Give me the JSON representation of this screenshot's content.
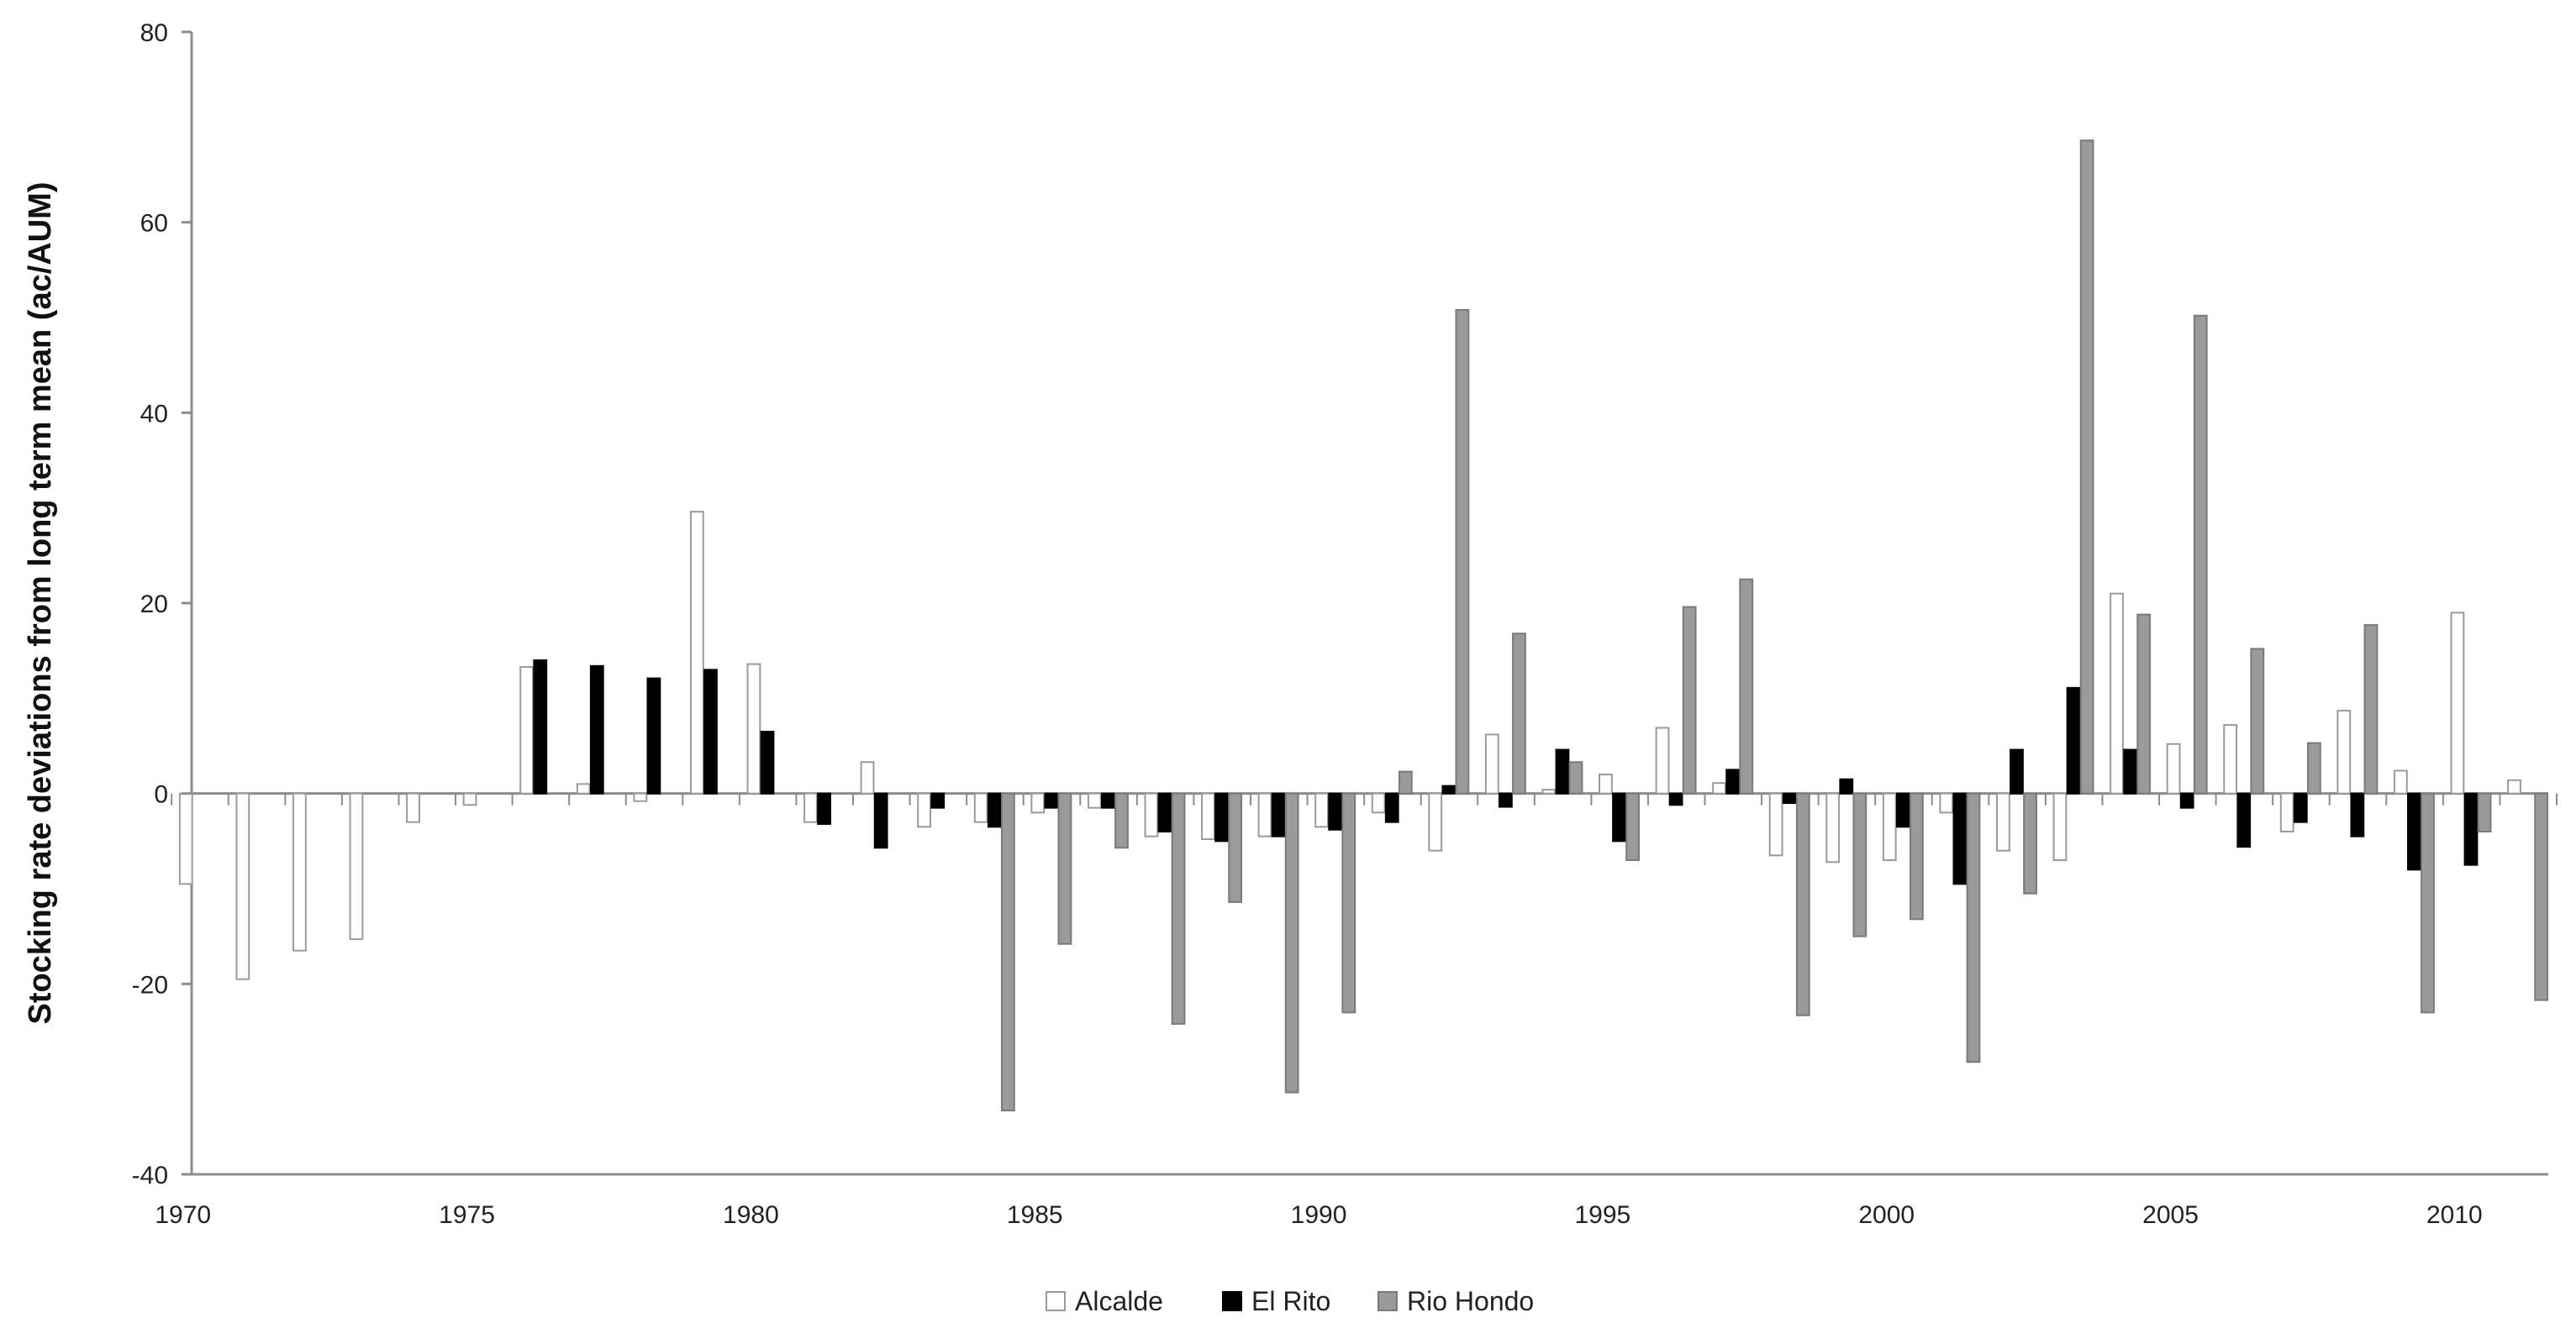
{
  "chart_data": {
    "type": "bar",
    "title": "",
    "xlabel": "",
    "ylabel": "Stocking rate deviations from long term mean (ac/AUM)",
    "ylim": [
      -40,
      80
    ],
    "yticks": [
      80,
      60,
      40,
      20,
      0,
      -20,
      -40
    ],
    "xticks": [
      1970,
      1975,
      1980,
      1985,
      1990,
      1995,
      2000,
      2005,
      2010
    ],
    "xlim": [
      1970,
      2011
    ],
    "grid": false,
    "legend_position": "bottom",
    "categories": [
      1970,
      1971,
      1972,
      1973,
      1974,
      1975,
      1976,
      1977,
      1978,
      1979,
      1980,
      1981,
      1982,
      1983,
      1984,
      1985,
      1986,
      1987,
      1988,
      1989,
      1990,
      1991,
      1992,
      1993,
      1994,
      1995,
      1996,
      1997,
      1998,
      1999,
      2000,
      2001,
      2002,
      2003,
      2004,
      2005,
      2006,
      2007,
      2008,
      2009,
      2010,
      2011
    ],
    "series": [
      {
        "name": "Alcalde",
        "color": "#ffffff",
        "stroke": "#9a9a9a",
        "values": [
          -9.5,
          -19.5,
          -16.5,
          -15.3,
          -3,
          -1.2,
          13.3,
          1,
          -0.8,
          29.6,
          13.6,
          -3,
          3.3,
          -3.5,
          -3,
          -2,
          -1.5,
          -4.5,
          -4.8,
          -4.5,
          -3.5,
          -2,
          -6,
          6.2,
          0.4,
          2,
          6.9,
          1.1,
          -6.5,
          -7.2,
          -7,
          -2,
          -6,
          -7,
          21,
          5.2,
          7.2,
          -4,
          8.7,
          2.4,
          19,
          1.4
        ]
      },
      {
        "name": "El Rito",
        "color": "#000000",
        "stroke": "#000000",
        "values": [
          0,
          0,
          0,
          0,
          0,
          0,
          14,
          13.4,
          12.1,
          13,
          6.5,
          -3.2,
          -5.7,
          -1.5,
          -3.5,
          -1.5,
          -1.5,
          -4,
          -5,
          -4.5,
          -3.8,
          -3,
          0.8,
          -1.4,
          4.6,
          -5,
          -1.2,
          2.5,
          -1,
          1.5,
          -3.5,
          -9.5,
          4.6,
          11.1,
          4.6,
          -1.5,
          -5.6,
          -3,
          -4.5,
          -8,
          -7.5,
          0
        ]
      },
      {
        "name": "Rio Hondo",
        "color": "#9a9a9a",
        "stroke": "#7a7a7a",
        "values": [
          0,
          0,
          0,
          0,
          0,
          0,
          0,
          0,
          0,
          0,
          0,
          0,
          0,
          0,
          -33.3,
          -15.8,
          -5.7,
          -24.2,
          -11.4,
          -31.4,
          -23,
          2.3,
          50.8,
          16.8,
          3.3,
          -7,
          19.6,
          22.5,
          -23.3,
          -15,
          -13.2,
          -28.2,
          -10.5,
          68.6,
          18.8,
          50.2,
          15.2,
          5.3,
          17.7,
          -23,
          -4,
          -21.7
        ]
      }
    ]
  }
}
